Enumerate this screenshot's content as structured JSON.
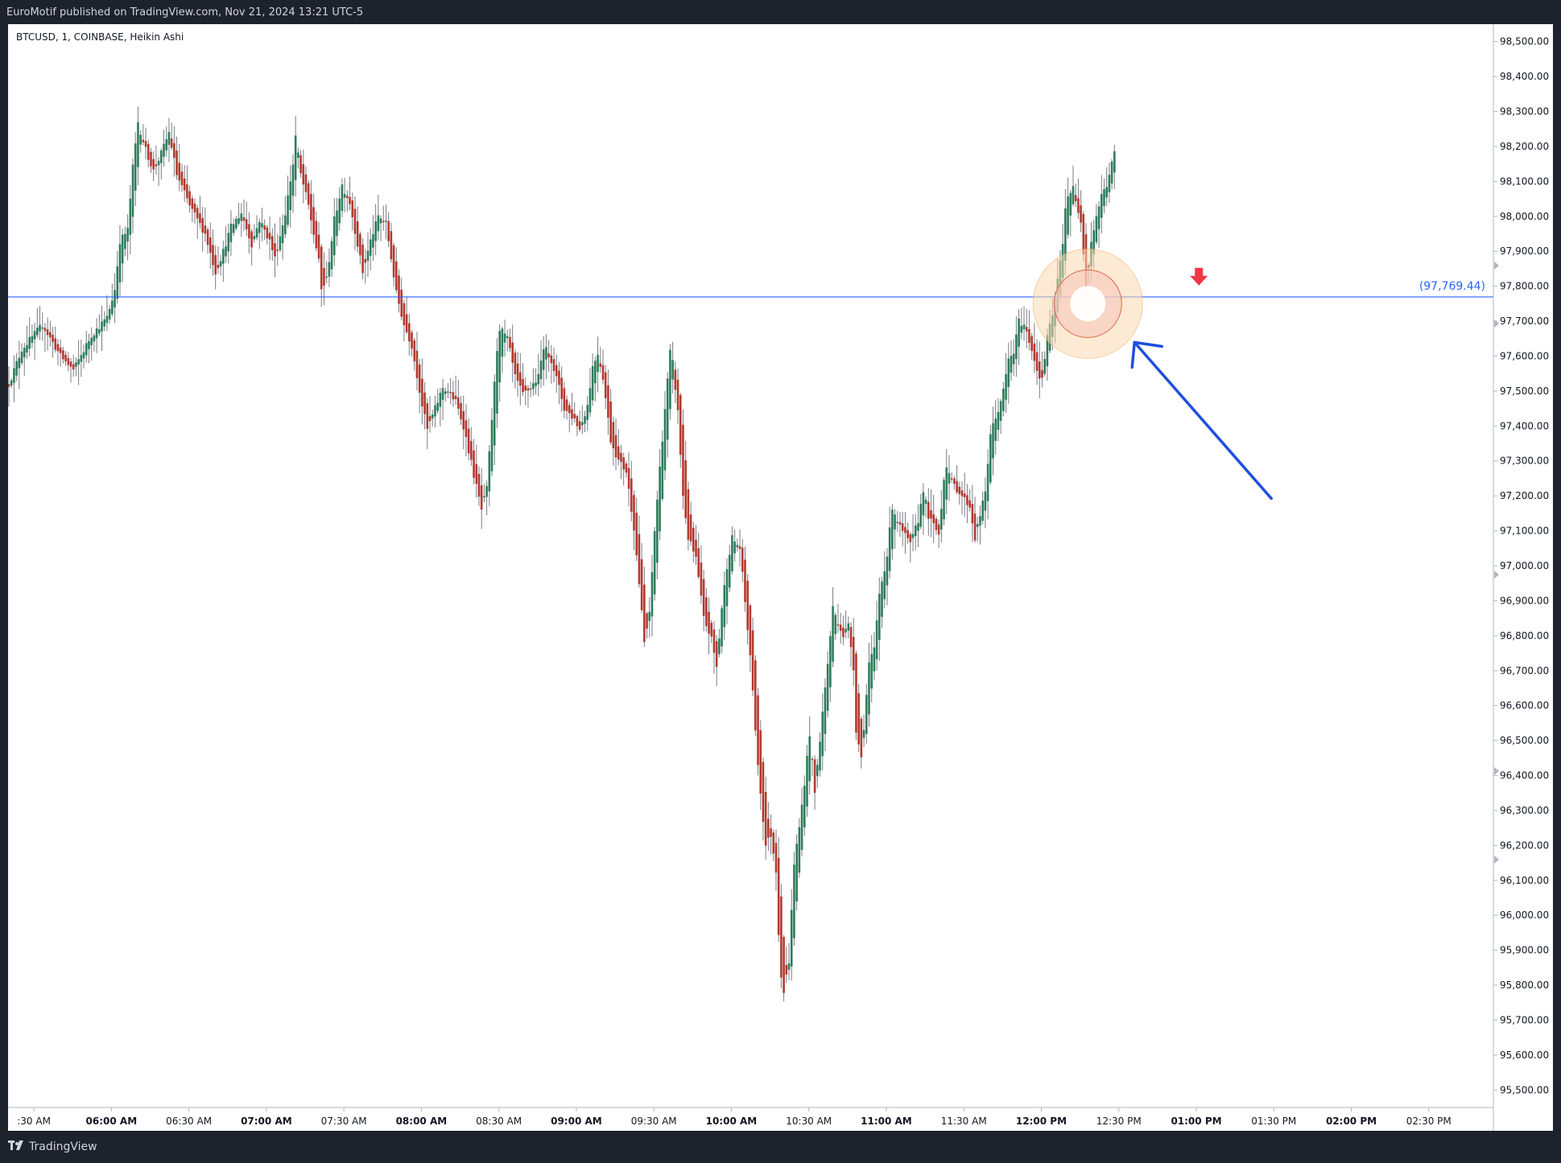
{
  "header": {
    "text": "EuroMotif published on TradingView.com, Nov 21, 2024 13:21 UTC-5"
  },
  "footer": {
    "brand": "TradingView",
    "logo_icon": "tradingview-logo-icon"
  },
  "colors": {
    "up": "#26a69a",
    "up_body": "#2e7d5b",
    "down": "#b23a30",
    "wick": "#787b86",
    "level_line": "#2962ff",
    "level_label": "#2962ff",
    "arrow_annotation": "#1f4fe0",
    "marker": "#f23645",
    "highlight": "#f7a35c"
  },
  "chart_data": {
    "type": "candlestick",
    "title": "BTCUSD, 1, COINBASE, Heikin Ashi",
    "symbol": "BTCUSD",
    "interval": "1",
    "exchange": "COINBASE",
    "style": "Heikin Ashi",
    "ylim": [
      95450,
      98550
    ],
    "y_ticks": [
      "98,500.00",
      "98,400.00",
      "98,300.00",
      "98,200.00",
      "98,100.00",
      "98,000.00",
      "97,900.00",
      "97,800.00",
      "97,700.00",
      "97,600.00",
      "97,500.00",
      "97,400.00",
      "97,300.00",
      "97,200.00",
      "97,100.00",
      "97,000.00",
      "96,900.00",
      "96,800.00",
      "96,700.00",
      "96,600.00",
      "96,500.00",
      "96,400.00",
      "96,300.00",
      "96,200.00",
      "96,100.00",
      "96,000.00",
      "95,900.00",
      "95,800.00",
      "95,700.00",
      "95,600.00",
      "95,500.00"
    ],
    "x_axis": {
      "start_minute": 320,
      "end_minute": 895,
      "tick_labels": [
        ":30 AM",
        "06:00 AM",
        "06:30 AM",
        "07:00 AM",
        "07:30 AM",
        "08:00 AM",
        "08:30 AM",
        "09:00 AM",
        "09:30 AM",
        "10:00 AM",
        "10:30 AM",
        "11:00 AM",
        "11:30 AM",
        "12:00 PM",
        "12:30 PM",
        "01:00 PM",
        "01:30 PM",
        "02:00 PM",
        "02:30 PM"
      ],
      "tick_minutes": [
        330,
        360,
        390,
        420,
        450,
        480,
        510,
        540,
        570,
        600,
        630,
        660,
        690,
        720,
        750,
        780,
        810,
        840,
        870
      ],
      "bold_ticks": [
        1,
        3,
        5,
        7,
        9,
        11,
        13,
        15,
        17
      ]
    },
    "price_path": [
      [
        320,
        97520
      ],
      [
        325,
        97620
      ],
      [
        333,
        97690
      ],
      [
        340,
        97600
      ],
      [
        345,
        97560
      ],
      [
        352,
        97660
      ],
      [
        358,
        97710
      ],
      [
        361,
        97790
      ],
      [
        363,
        97930
      ],
      [
        366,
        97960
      ],
      [
        368,
        98140
      ],
      [
        370,
        98270
      ],
      [
        373,
        98190
      ],
      [
        376,
        98130
      ],
      [
        379,
        98180
      ],
      [
        382,
        98240
      ],
      [
        385,
        98120
      ],
      [
        390,
        98030
      ],
      [
        396,
        97950
      ],
      [
        400,
        97840
      ],
      [
        403,
        97900
      ],
      [
        406,
        97970
      ],
      [
        410,
        98010
      ],
      [
        414,
        97920
      ],
      [
        417,
        97990
      ],
      [
        421,
        97930
      ],
      [
        423,
        97880
      ],
      [
        427,
        98010
      ],
      [
        430,
        98150
      ],
      [
        431,
        98230
      ],
      [
        433,
        98120
      ],
      [
        436,
        98030
      ],
      [
        440,
        97870
      ],
      [
        441,
        97790
      ],
      [
        443,
        97820
      ],
      [
        446,
        97990
      ],
      [
        449,
        98090
      ],
      [
        452,
        98040
      ],
      [
        455,
        97920
      ],
      [
        457,
        97840
      ],
      [
        460,
        97930
      ],
      [
        463,
        98000
      ],
      [
        466,
        97980
      ],
      [
        470,
        97780
      ],
      [
        473,
        97690
      ],
      [
        476,
        97630
      ],
      [
        480,
        97460
      ],
      [
        482,
        97390
      ],
      [
        485,
        97450
      ],
      [
        488,
        97510
      ],
      [
        490,
        97500
      ],
      [
        493,
        97470
      ],
      [
        496,
        97400
      ],
      [
        500,
        97260
      ],
      [
        503,
        97160
      ],
      [
        505,
        97220
      ],
      [
        507,
        97420
      ],
      [
        509,
        97620
      ],
      [
        510,
        97680
      ],
      [
        513,
        97650
      ],
      [
        516,
        97540
      ],
      [
        519,
        97490
      ],
      [
        522,
        97510
      ],
      [
        525,
        97540
      ],
      [
        527,
        97630
      ],
      [
        530,
        97590
      ],
      [
        533,
        97510
      ],
      [
        535,
        97450
      ],
      [
        539,
        97420
      ],
      [
        541,
        97390
      ],
      [
        544,
        97460
      ],
      [
        546,
        97570
      ],
      [
        548,
        97610
      ],
      [
        550,
        97540
      ],
      [
        553,
        97360
      ],
      [
        556,
        97300
      ],
      [
        559,
        97270
      ],
      [
        562,
        97110
      ],
      [
        564,
        96950
      ],
      [
        566,
        96780
      ],
      [
        568,
        96860
      ],
      [
        570,
        97100
      ],
      [
        572,
        97280
      ],
      [
        574,
        97450
      ],
      [
        576,
        97610
      ],
      [
        577,
        97580
      ],
      [
        579,
        97440
      ],
      [
        581,
        97200
      ],
      [
        583,
        97080
      ],
      [
        586,
        97020
      ],
      [
        589,
        96850
      ],
      [
        592,
        96790
      ],
      [
        594,
        96710
      ],
      [
        596,
        96880
      ],
      [
        598,
        97000
      ],
      [
        600,
        97080
      ],
      [
        603,
        97050
      ],
      [
        606,
        96820
      ],
      [
        608,
        96650
      ],
      [
        609,
        96520
      ],
      [
        611,
        96350
      ],
      [
        613,
        96200
      ],
      [
        615,
        96230
      ],
      [
        617,
        96130
      ],
      [
        618,
        95950
      ],
      [
        619,
        95830
      ],
      [
        620,
        95780
      ],
      [
        622,
        95870
      ],
      [
        623,
        96010
      ],
      [
        624,
        96150
      ],
      [
        626,
        96250
      ],
      [
        628,
        96380
      ],
      [
        630,
        96520
      ],
      [
        632,
        96350
      ],
      [
        635,
        96580
      ],
      [
        637,
        96720
      ],
      [
        639,
        96880
      ],
      [
        641,
        96840
      ],
      [
        643,
        96800
      ],
      [
        645,
        96830
      ],
      [
        647,
        96710
      ],
      [
        648,
        96530
      ],
      [
        650,
        96450
      ],
      [
        653,
        96720
      ],
      [
        655,
        96760
      ],
      [
        657,
        96920
      ],
      [
        660,
        97030
      ],
      [
        662,
        97170
      ],
      [
        665,
        97110
      ],
      [
        669,
        97060
      ],
      [
        672,
        97130
      ],
      [
        674,
        97220
      ],
      [
        676,
        97140
      ],
      [
        680,
        97090
      ],
      [
        682,
        97250
      ],
      [
        683,
        97290
      ],
      [
        685,
        97240
      ],
      [
        689,
        97200
      ],
      [
        692,
        97170
      ],
      [
        694,
        97080
      ],
      [
        698,
        97210
      ],
      [
        700,
        97380
      ],
      [
        702,
        97420
      ],
      [
        705,
        97500
      ],
      [
        707,
        97590
      ],
      [
        709,
        97610
      ],
      [
        711,
        97700
      ],
      [
        713,
        97690
      ],
      [
        716,
        97620
      ],
      [
        718,
        97560
      ],
      [
        720,
        97530
      ],
      [
        722,
        97660
      ],
      [
        724,
        97710
      ],
      [
        726,
        97820
      ],
      [
        728,
        97920
      ],
      [
        729,
        98030
      ],
      [
        730,
        98060
      ],
      [
        732,
        98080
      ],
      [
        733,
        98040
      ],
      [
        735,
        97990
      ],
      [
        736,
        97900
      ],
      [
        737,
        97780
      ],
      [
        739,
        97930
      ],
      [
        741,
        98000
      ],
      [
        743,
        98060
      ],
      [
        745,
        98090
      ],
      [
        747,
        98150
      ],
      [
        748,
        98180
      ]
    ],
    "horizontal_line": {
      "value": 97769.44,
      "label": "(97,769.44)"
    },
    "highlight_circle": {
      "minute": 738,
      "value": 97750
    },
    "down_marker": {
      "minute": 781,
      "value": 97825
    }
  }
}
